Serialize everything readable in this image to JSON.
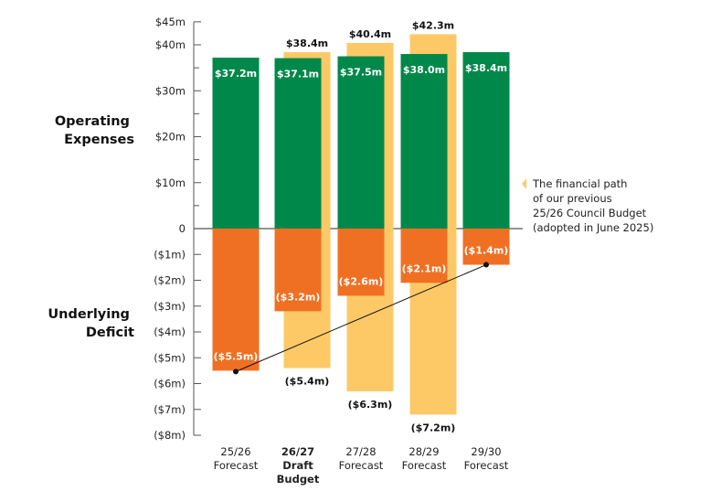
{
  "chart_data": {
    "type": "bar",
    "title": "",
    "y_top_label": "Operating Expenses",
    "y_bottom_label": "Underlying Deficit",
    "categories": [
      {
        "lines": [
          "25/26",
          "Forecast"
        ],
        "bold": false
      },
      {
        "lines": [
          "26/27",
          "Draft",
          "Budget"
        ],
        "bold": true
      },
      {
        "lines": [
          "27/28",
          "Forecast"
        ],
        "bold": false
      },
      {
        "lines": [
          "28/29",
          "Forecast"
        ],
        "bold": false
      },
      {
        "lines": [
          "29/30",
          "Forecast"
        ],
        "bold": false
      }
    ],
    "top_axis": {
      "ylim": [
        0,
        45
      ],
      "ticks": [
        {
          "value": 45,
          "label": "$45m"
        },
        {
          "value": 40,
          "label": "$40m"
        },
        {
          "value": 30,
          "label": "$30m"
        },
        {
          "value": 20,
          "label": "$20m"
        },
        {
          "value": 10,
          "label": "$10m"
        },
        {
          "value": 0,
          "label": "0"
        }
      ]
    },
    "bottom_axis": {
      "ylim": [
        -8,
        0
      ],
      "ticks": [
        {
          "value": -1,
          "label": "($1m)"
        },
        {
          "value": -2,
          "label": "($2m)"
        },
        {
          "value": -3,
          "label": "($3m)"
        },
        {
          "value": -4,
          "label": "($4m)"
        },
        {
          "value": -5,
          "label": "($5m)"
        },
        {
          "value": -6,
          "label": "($6m)"
        },
        {
          "value": -7,
          "label": "($7m)"
        },
        {
          "value": -8,
          "label": "($8m)"
        }
      ]
    },
    "series": [
      {
        "name": "",
        "role": "operating_expenses",
        "color": "#00884a",
        "values": [
          37.2,
          37.1,
          37.5,
          38.0,
          38.4
        ],
        "labels": [
          "$37.2m",
          "$37.1m",
          "$37.5m",
          "$38.0m",
          "$38.4m"
        ]
      },
      {
        "name": "",
        "role": "underlying_deficit",
        "color": "#f07023",
        "values": [
          -5.5,
          -3.2,
          -2.6,
          -2.1,
          -1.4
        ],
        "labels": [
          "($5.5m)",
          "($3.2m)",
          "($2.6m)",
          "($2.1m)",
          "($1.4m)"
        ]
      },
      {
        "name": "The financial path of our previous 25/26 Council Budget (adopted in June 2025)",
        "role": "previous_budget",
        "color": "#fdc967",
        "categories_index": [
          1,
          2,
          3
        ],
        "expense_values": [
          38.4,
          40.4,
          42.3
        ],
        "expense_labels": [
          "$38.4m",
          "$40.4m",
          "$42.3m"
        ],
        "deficit_values": [
          -5.4,
          -6.3,
          -7.2
        ],
        "deficit_labels": [
          "($5.4m)",
          "($6.3m)",
          "($7.2m)"
        ]
      }
    ],
    "trend_line": {
      "from": -5.5,
      "to": -1.4,
      "color": "#111111"
    },
    "legend": {
      "placement": "right",
      "lines": [
        "The financial path",
        "of our previous",
        "25/26 Council Budget",
        "(adopted in June 2025)"
      ]
    }
  }
}
